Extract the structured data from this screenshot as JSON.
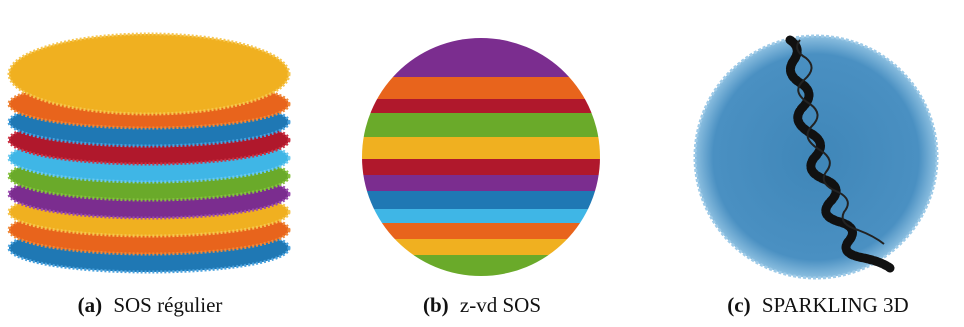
{
  "figures": [
    {
      "label": "(a)",
      "caption": "SOS régulier"
    },
    {
      "label": "(b)",
      "caption": "z-vd SOS"
    },
    {
      "label": "(c)",
      "caption": "SPARKLING 3D"
    }
  ]
}
